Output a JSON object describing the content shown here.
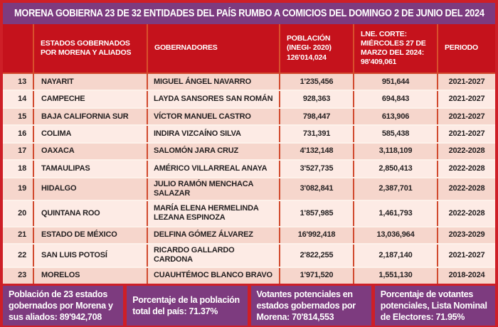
{
  "title": "MORENA GOBIERNA 23 DE 32 ENTIDADES DEL PAÍS RUMBO A COMICIOS DEL DOMINGO 2 DE JUNIO DEL 2024",
  "colors": {
    "frame_red": "#ce1f27",
    "header_red": "#c5121c",
    "purple": "#7d3b7f",
    "row_dark": "#f6d6cc",
    "row_light": "#fdebe5",
    "divider_orange": "#d14a2e"
  },
  "chart_data": {
    "type": "table",
    "title": "MORENA GOBIERNA 23 DE 32 ENTIDADES DEL PAÍS RUMBO A COMICIOS DEL DOMINGO 2 DE JUNIO DEL 2024",
    "columns": [
      "",
      "ESTADOS GOBERNADOS POR MORENA Y ALIADOS",
      "GOBERNADORES",
      "POBLACIÓN (INEGI- 2020) 126'014,024",
      "LNE. CORTE: MIÉRCOLES 27 DE MARZO DEL 2024: 98'409,061",
      "PERIODO"
    ],
    "rows": [
      {
        "num": "13",
        "estado": "NAYARIT",
        "gobernador": "MIGUEL ÁNGEL NAVARRO",
        "poblacion": "1'235,456",
        "lne": "951,644",
        "periodo": "2021-2027"
      },
      {
        "num": "14",
        "estado": "CAMPECHE",
        "gobernador": "LAYDA SANSORES SAN ROMÁN",
        "poblacion": "928,363",
        "lne": "694,843",
        "periodo": "2021-2027"
      },
      {
        "num": "15",
        "estado": "BAJA CALIFORNIA SUR",
        "gobernador": "VÍCTOR MANUEL CASTRO",
        "poblacion": "798,447",
        "lne": "613,906",
        "periodo": "2021-2027"
      },
      {
        "num": "16",
        "estado": "COLIMA",
        "gobernador": "INDIRA VIZCAÍNO SILVA",
        "poblacion": "731,391",
        "lne": "585,438",
        "periodo": "2021-2027"
      },
      {
        "num": "17",
        "estado": "OAXACA",
        "gobernador": "SALOMÓN JARA CRUZ",
        "poblacion": "4'132,148",
        "lne": "3,118,109",
        "periodo": "2022-2028"
      },
      {
        "num": "18",
        "estado": "TAMAULIPAS",
        "gobernador": "AMÉRICO VILLARREAL ANAYA",
        "poblacion": "3'527,735",
        "lne": "2,850,413",
        "periodo": "2022-2028"
      },
      {
        "num": "19",
        "estado": "HIDALGO",
        "gobernador": "JULIO RAMÓN MENCHACA SALAZAR",
        "poblacion": "3'082,841",
        "lne": "2,387,701",
        "periodo": "2022-2028"
      },
      {
        "num": "20",
        "estado": "QUINTANA ROO",
        "gobernador": "MARÍA ELENA HERMELINDA LEZANA ESPINOZA",
        "poblacion": "1'857,985",
        "lne": "1,461,793",
        "periodo": "2022-2028"
      },
      {
        "num": "21",
        "estado": "ESTADO DE MÉXICO",
        "gobernador": "DELFINA GÓMEZ ÁLVAREZ",
        "poblacion": "16'992,418",
        "lne": "13,036,964",
        "periodo": "2023-2029"
      },
      {
        "num": "22",
        "estado": "SAN LUIS POTOSÍ",
        "gobernador": "RICARDO GALLARDO CARDONA",
        "poblacion": "2'822,255",
        "lne": "2,187,140",
        "periodo": "2021-2027"
      },
      {
        "num": "23",
        "estado": "MORELOS",
        "gobernador": "CUAUHTÉMOC BLANCO BRAVO",
        "poblacion": "1'971,520",
        "lne": "1,551,130",
        "periodo": "2018-2024"
      }
    ]
  },
  "footer": {
    "box1": "Población de 23 estados gobernados por Morena y sus aliados: 89'942,708",
    "box2": "Porcentaje de la población total del país: 71.37%",
    "box3": "Votantes potenciales en estados gobernados por Morena: 70'814,553",
    "box4": "Porcentaje de votantes potenciales, Lista Nominal de Electores: 71.95%"
  }
}
